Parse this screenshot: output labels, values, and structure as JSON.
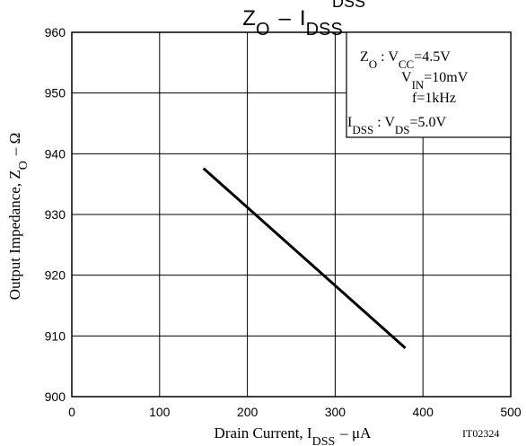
{
  "chart_data": {
    "type": "line",
    "title": {
      "main": "Z",
      "main_sub": "O",
      "separator": "–",
      "var": "I",
      "var_sub": "DSS",
      "cropped_top_text": "DSS"
    },
    "xlabel": {
      "prefix": "Drain Current, I",
      "sub": "DSS",
      "unit": "–  μA"
    },
    "ylabel": {
      "prefix": "Output Impedance, Z",
      "sub": "O",
      "unit": "–  Ω"
    },
    "xlim": [
      0,
      500
    ],
    "ylim": [
      900,
      960
    ],
    "x_ticks": [
      0,
      100,
      200,
      300,
      400,
      500
    ],
    "x_tick_labels": [
      "0",
      "100",
      "200",
      "300",
      "400",
      "500"
    ],
    "y_ticks": [
      900,
      910,
      920,
      930,
      940,
      950,
      960
    ],
    "y_tick_labels": [
      "900",
      "910",
      "920",
      "930",
      "940",
      "950",
      "960"
    ],
    "grid": true,
    "series": [
      {
        "x": [
          150,
          380
        ],
        "y": [
          937.6,
          908.0
        ]
      }
    ],
    "conditions": [
      {
        "label": "Z",
        "label_sub": "O",
        "colon": " : ",
        "text": "V",
        "text_sub": "CC",
        "text_rest": "=4.5V"
      },
      {
        "text": "V",
        "text_sub": "IN",
        "text_rest": "=10mV"
      },
      {
        "text_rest": "f=1kHz"
      },
      {
        "label": "I",
        "label_sub": "DSS",
        "colon": " : ",
        "text": "V",
        "text_sub": "DS",
        "text_rest": "=5.0V"
      }
    ],
    "figure_id": "IT02324",
    "colors": {
      "line": "#000000",
      "grid": "#000000",
      "background": "#ffffff"
    }
  }
}
